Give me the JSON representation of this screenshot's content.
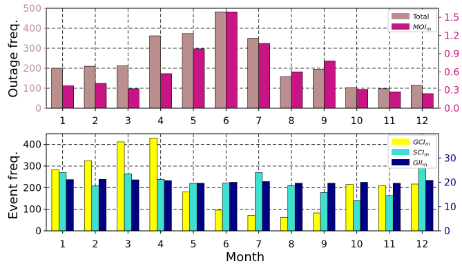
{
  "chart_data": [
    {
      "type": "bar",
      "xlabel": "",
      "ylabel": "Outage freq.",
      "categories": [
        "1",
        "2",
        "3",
        "4",
        "5",
        "6",
        "7",
        "8",
        "9",
        "10",
        "11",
        "12"
      ],
      "ylim": [
        0,
        500
      ],
      "yticks": [
        "0",
        "100",
        "200",
        "300",
        "400",
        "500"
      ],
      "y2lim": [
        0,
        1.65
      ],
      "y2ticks": [
        "0.0",
        "0.3",
        "0.6",
        "0.9",
        "1.2",
        "1.5"
      ],
      "grid": true,
      "legend": "top-right",
      "series": [
        {
          "name": "Total",
          "axis": "left",
          "color": "#bc8f8f",
          "values": [
            200,
            210,
            212,
            362,
            373,
            482,
            350,
            158,
            195,
            103,
            97,
            115
          ]
        },
        {
          "name": "MOI",
          "name_sub": "m",
          "axis": "right",
          "color": "#c71585",
          "values": [
            0.37,
            0.41,
            0.32,
            0.57,
            0.98,
            1.59,
            1.07,
            0.6,
            0.78,
            0.31,
            0.27,
            0.24
          ]
        }
      ]
    },
    {
      "type": "bar",
      "xlabel": "Month",
      "ylabel": "Event freq.",
      "categories": [
        "1",
        "2",
        "3",
        "4",
        "5",
        "6",
        "7",
        "8",
        "9",
        "10",
        "11",
        "12"
      ],
      "ylim": [
        0,
        450
      ],
      "yticks": [
        "0",
        "100",
        "200",
        "300",
        "400"
      ],
      "y2lim": [
        0,
        40
      ],
      "y2ticks": [
        "0",
        "10",
        "20",
        "30"
      ],
      "grid": true,
      "legend": "top-right",
      "series": [
        {
          "name": "GCI",
          "name_sub": "m",
          "axis": "left",
          "color": "#ffff00",
          "values": [
            283,
            325,
            412,
            430,
            181,
            96,
            72,
            63,
            83,
            215,
            209,
            217
          ]
        },
        {
          "name": "SCI",
          "name_sub": "m",
          "axis": "right",
          "color": "#40e0d0",
          "values": [
            24.0,
            18.5,
            23.5,
            21.2,
            19.6,
            19.7,
            24.0,
            18.6,
            15.8,
            12.5,
            14.5,
            26.0
          ]
        },
        {
          "name": "GII",
          "name_sub": "m",
          "axis": "right",
          "color": "#000080",
          "values": [
            21.1,
            21.2,
            21.0,
            20.7,
            19.6,
            20.0,
            20.3,
            19.6,
            19.6,
            20.0,
            19.6,
            20.8
          ]
        }
      ]
    }
  ]
}
